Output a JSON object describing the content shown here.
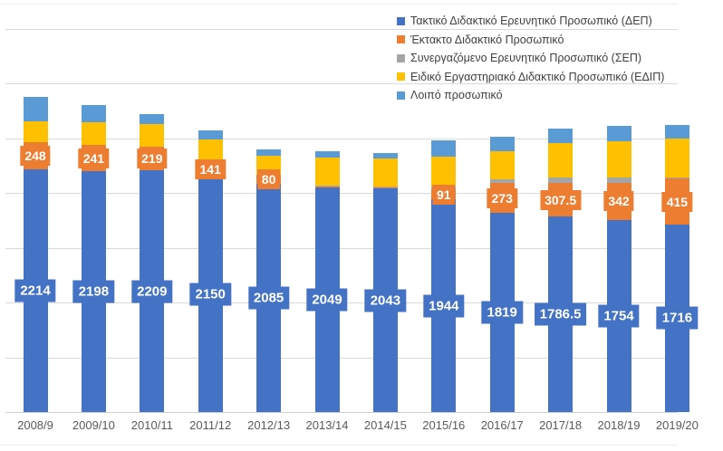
{
  "chart_data": {
    "type": "bar",
    "stacked": true,
    "title": "",
    "xlabel": "",
    "ylabel": "",
    "ylim": [
      0,
      3500
    ],
    "gridline_step": 500,
    "grid": true,
    "legend_position": "top-right",
    "y_tick_labels_visible": false,
    "categories": [
      "2008/9",
      "2009/10",
      "2010/11",
      "2011/12",
      "2012/13",
      "2013/14",
      "2014/15",
      "2015/16",
      "2016/17",
      "2017/18",
      "2018/19",
      "2019/20"
    ],
    "series": [
      {
        "name": "Τακτικό Διδακτικό Ερευνητικό Προσωπικό (ΔΕΠ)",
        "color": "#4472C4",
        "values": [
          2214,
          2198,
          2209,
          2150,
          2085,
          2049,
          2043,
          1944,
          1819,
          1786.5,
          1754,
          1716
        ],
        "labels": [
          "2214",
          "2198",
          "2209",
          "2150",
          "2085",
          "2049",
          "2043",
          "1944",
          "1819",
          "1786.5",
          "1754",
          "1716"
        ]
      },
      {
        "name": "Έκτακτο Διδακτικό Προσωπικό",
        "color": "#ED7D31",
        "values": [
          248,
          241,
          219,
          141,
          80,
          15,
          15,
          91,
          273,
          307.5,
          342,
          415
        ],
        "labels": [
          "248",
          "241",
          "219",
          "141",
          "80",
          "",
          "",
          "91",
          "273",
          "307.5",
          "342",
          "415"
        ]
      },
      {
        "name": "Συνεργαζόμενο Ερευνητικό Προσωπικό (ΣΕΠ)",
        "color": "#A5A5A5",
        "values": [
          0,
          0,
          0,
          0,
          0,
          5,
          5,
          25,
          35,
          48,
          50,
          10
        ],
        "labels": [
          "",
          "",
          "",
          "",
          "",
          "",
          "",
          "",
          "",
          "",
          "",
          ""
        ]
      },
      {
        "name": "Ειδικό Εργαστηριακό Διδακτικό Προσωπικό (ΕΔΙΠ)",
        "color": "#FFC000",
        "values": [
          195,
          205,
          200,
          200,
          180,
          255,
          255,
          270,
          255,
          318,
          325,
          355
        ],
        "labels": [
          "",
          "",
          "",
          "",
          "",
          "",
          "",
          "",
          "",
          "",
          "",
          ""
        ]
      },
      {
        "name": "Λοιπό προσωπικό",
        "color": "#5B9BD5",
        "values": [
          225,
          160,
          95,
          85,
          55,
          55,
          45,
          155,
          130,
          130,
          140,
          130
        ],
        "labels": [
          "",
          "",
          "",
          "",
          "",
          "",
          "",
          "",
          "",
          "",
          "",
          ""
        ]
      }
    ]
  },
  "legend": {
    "items": [
      {
        "label": "Τακτικό Διδακτικό Ερευνητικό Προσωπικό (ΔΕΠ)",
        "color": "#4472C4",
        "icon": "legend-swatch-blue"
      },
      {
        "label": "Έκτακτο Διδακτικό Προσωπικό",
        "color": "#ED7D31",
        "icon": "legend-swatch-orange"
      },
      {
        "label": "Συνεργαζόμενο Ερευνητικό Προσωπικό (ΣΕΠ)",
        "color": "#A5A5A5",
        "icon": "legend-swatch-gray"
      },
      {
        "label": "Ειδικό Εργαστηριακό Διδακτικό Προσωπικό (ΕΔΙΠ)",
        "color": "#FFC000",
        "icon": "legend-swatch-yellow"
      },
      {
        "label": "Λοιπό προσωπικό",
        "color": "#5B9BD5",
        "icon": "legend-swatch-lightblue"
      }
    ]
  },
  "colors": {
    "gridline": "#d9d9d9",
    "axis_line": "#d0d0d0",
    "category_label": "#595959",
    "legend_text": "#404040",
    "data_label_text": "#ffffff"
  }
}
